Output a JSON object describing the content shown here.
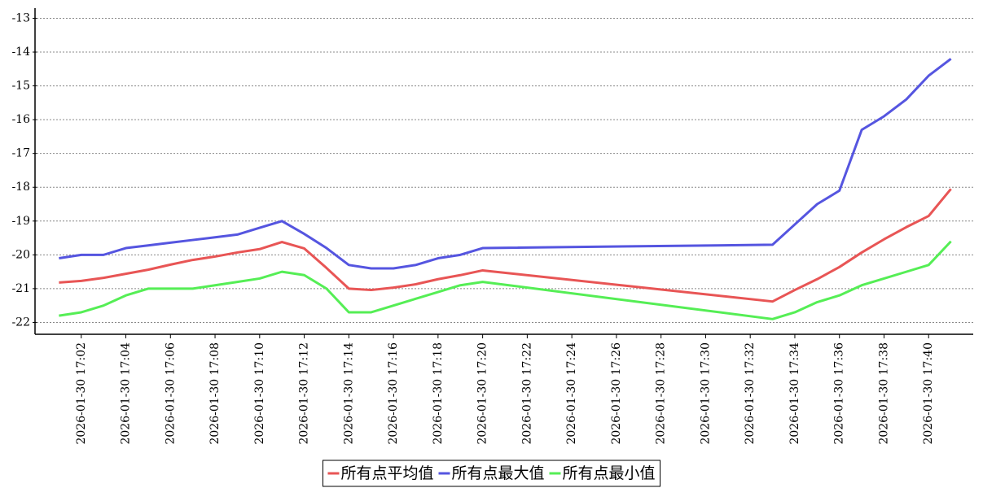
{
  "chart_data": {
    "type": "line",
    "x": [
      "2026-01-30 17:01",
      "2026-01-30 17:02",
      "2026-01-30 17:03",
      "2026-01-30 17:04",
      "2026-01-30 17:05",
      "2026-01-30 17:06",
      "2026-01-30 17:07",
      "2026-01-30 17:08",
      "2026-01-30 17:09",
      "2026-01-30 17:10",
      "2026-01-30 17:11",
      "2026-01-30 17:12",
      "2026-01-30 17:13",
      "2026-01-30 17:14",
      "2026-01-30 17:15",
      "2026-01-30 17:16",
      "2026-01-30 17:17",
      "2026-01-30 17:18",
      "2026-01-30 17:19",
      "2026-01-30 17:20",
      "2026-01-30 17:33",
      "2026-01-30 17:34",
      "2026-01-30 17:35",
      "2026-01-30 17:36",
      "2026-01-30 17:37",
      "2026-01-30 17:38",
      "2026-01-30 17:39",
      "2026-01-30 17:40",
      "2026-01-30 17:41"
    ],
    "series": [
      {
        "name": "所有点平均值",
        "color": "#e85555",
        "values": [
          -20.82,
          -20.77,
          -20.68,
          -20.56,
          -20.44,
          -20.29,
          -20.15,
          -20.05,
          -19.93,
          -19.83,
          -19.62,
          -19.81,
          -20.39,
          -21.0,
          -21.04,
          -20.97,
          -20.87,
          -20.72,
          -20.6,
          -20.46,
          -21.38,
          -21.04,
          -20.72,
          -20.36,
          -19.93,
          -19.54,
          -19.18,
          -18.85,
          -18.05
        ]
      },
      {
        "name": "所有点最大值",
        "color": "#5555e0",
        "values": [
          -20.1,
          -20.0,
          -20.0,
          -19.8,
          -19.72,
          -19.64,
          -19.56,
          -19.48,
          -19.4,
          -19.2,
          -19.0,
          -19.38,
          -19.8,
          -20.3,
          -20.4,
          -20.4,
          -20.3,
          -20.1,
          -20.0,
          -19.8,
          -19.7,
          -19.1,
          -18.5,
          -18.1,
          -16.3,
          -15.9,
          -15.4,
          -14.7,
          -14.2
        ]
      },
      {
        "name": "所有点最小值",
        "color": "#55ee55",
        "values": [
          -21.8,
          -21.7,
          -21.5,
          -21.2,
          -21.0,
          -21.0,
          -21.0,
          -20.9,
          -20.8,
          -20.7,
          -20.5,
          -20.6,
          -21.0,
          -21.7,
          -21.7,
          -21.5,
          -21.3,
          -21.1,
          -20.9,
          -20.8,
          -21.9,
          -21.7,
          -21.4,
          -21.2,
          -20.9,
          -20.7,
          -20.5,
          -20.3,
          -19.6
        ]
      }
    ],
    "xlim": [
      "2026-01-30 17:00",
      "2026-01-30 17:42"
    ],
    "xticks": [
      "2026-01-30 17:02",
      "2026-01-30 17:04",
      "2026-01-30 17:06",
      "2026-01-30 17:08",
      "2026-01-30 17:10",
      "2026-01-30 17:12",
      "2026-01-30 17:14",
      "2026-01-30 17:16",
      "2026-01-30 17:18",
      "2026-01-30 17:20",
      "2026-01-30 17:22",
      "2026-01-30 17:24",
      "2026-01-30 17:26",
      "2026-01-30 17:28",
      "2026-01-30 17:30",
      "2026-01-30 17:32",
      "2026-01-30 17:34",
      "2026-01-30 17:36",
      "2026-01-30 17:38",
      "2026-01-30 17:40"
    ],
    "ylim": [
      -22.35,
      -12.7
    ],
    "yticks": [
      -13,
      -14,
      -15,
      -16,
      -17,
      -18,
      -19,
      -20,
      -21,
      -22
    ],
    "grid": true,
    "legend": "bottom"
  }
}
